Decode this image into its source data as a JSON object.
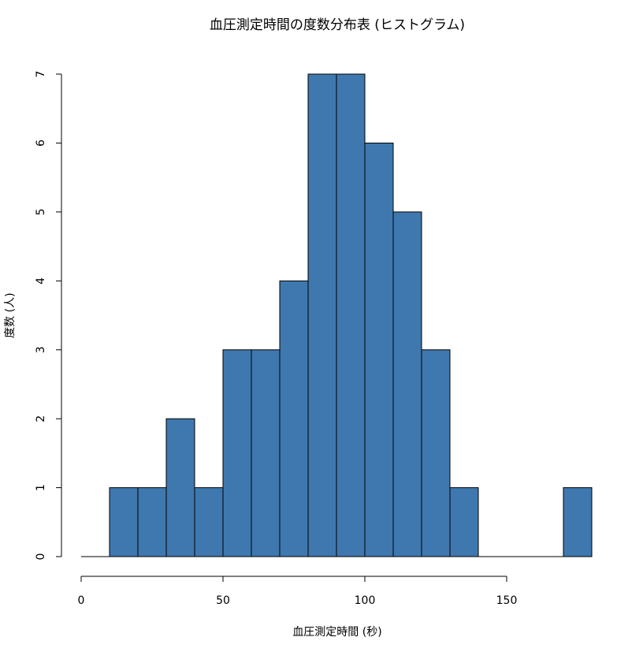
{
  "chart_data": {
    "type": "bar",
    "title": "血圧測定時間の度数分布表 (ヒストグラム)",
    "xlabel": "血圧測定時間 (秒)",
    "ylabel": "度数 (人)",
    "bin_edges": [
      0,
      10,
      20,
      30,
      40,
      50,
      60,
      70,
      80,
      90,
      100,
      110,
      120,
      130,
      140,
      150,
      160,
      170,
      180
    ],
    "values": [
      0,
      1,
      1,
      2,
      1,
      3,
      3,
      4,
      7,
      7,
      6,
      5,
      3,
      1,
      0,
      0,
      0,
      1
    ],
    "x_ticks": [
      0,
      50,
      100,
      150
    ],
    "x_tick_labels": [
      "0",
      "50",
      "100",
      "150"
    ],
    "y_ticks": [
      0,
      1,
      2,
      3,
      4,
      5,
      6,
      7
    ],
    "y_tick_labels": [
      "0",
      "1",
      "2",
      "3",
      "4",
      "5",
      "6",
      "7"
    ],
    "xlim": [
      0,
      180
    ],
    "ylim": [
      0,
      7
    ],
    "bar_color": "#3F78AE",
    "grid": false,
    "legend": "none"
  }
}
